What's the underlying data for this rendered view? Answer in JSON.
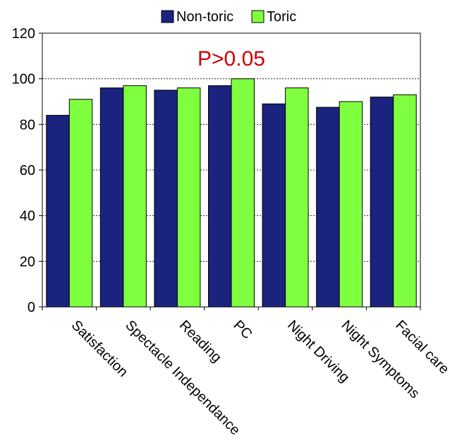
{
  "chart_data": {
    "type": "bar",
    "categories": [
      "Satisfaction",
      "Spectacle Independance",
      "Reading",
      "PC",
      "Night Driving",
      "Night Symptoms",
      "Facial care"
    ],
    "series": [
      {
        "name": "Non-toric",
        "color": "#1a237e",
        "values": [
          84,
          96,
          95,
          97,
          89,
          87.5,
          92
        ]
      },
      {
        "name": "Toric",
        "color": "#7fff3f",
        "values": [
          91,
          97,
          96,
          100,
          96,
          90,
          93
        ]
      }
    ],
    "ylim": [
      0,
      120
    ],
    "yticks": [
      0,
      20,
      40,
      60,
      80,
      100,
      120
    ],
    "grid": "dotted horizontal",
    "legend_position": "top",
    "annotation": {
      "text": "P>0.05",
      "color": "#cc0000"
    },
    "title": "",
    "xlabel": "",
    "ylabel": ""
  }
}
